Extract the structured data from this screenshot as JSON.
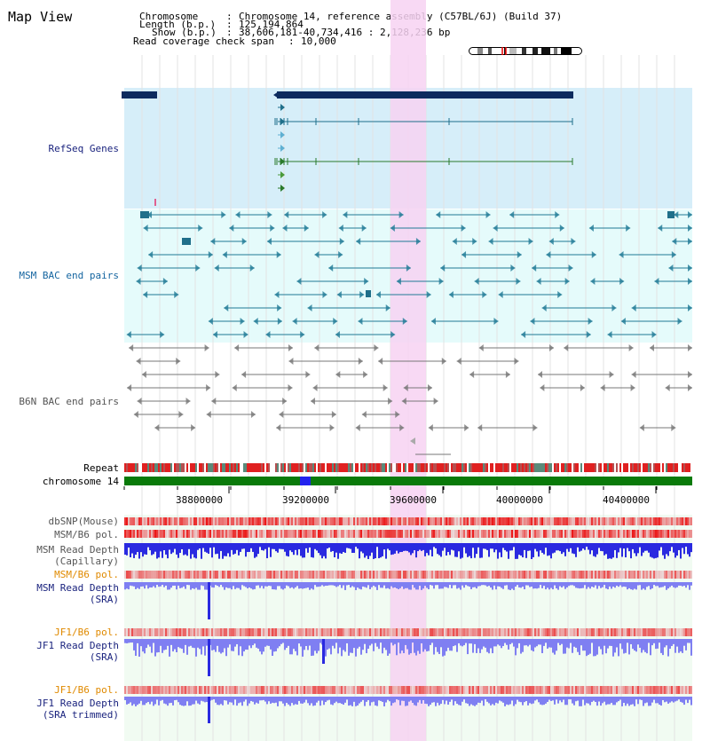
{
  "page": {
    "title": "Map View"
  },
  "info": {
    "chromosome_label": "Chromosome",
    "chromosome_value": "Chromosome 14, reference assembly (C57BL/6J) (Build 37)",
    "length_label": "Length (b.p.)",
    "length_value": "125,194,864",
    "show_label": "Show (b.p.)",
    "show_value": "38,606,181-40,734,416 : 2,128,236 bp",
    "span_label": "Read coverage check span",
    "span_value": "10,000",
    "sep": ":"
  },
  "tracks": {
    "refseq": "RefSeq Genes",
    "msm_bac": "MSM BAC end pairs",
    "b6n_bac": "B6N BAC end pairs",
    "repeat": "Repeat",
    "chromosome": "chromosome 14",
    "dbsnp": "dbSNP(Mouse)",
    "msm_b6_pol": "MSM/B6 pol.",
    "msm_depth_cap_1": "MSM Read Depth",
    "msm_depth_cap_2": "(Capillary)",
    "msm_b6_pol_2": "MSM/B6 pol.",
    "msm_depth_sra_1": "MSM Read Depth",
    "msm_depth_sra_2": "(SRA)",
    "jf1_b6_pol": "JF1/B6 pol.",
    "jf1_depth_sra_1": "JF1 Read Depth",
    "jf1_depth_sra_2": "(SRA)",
    "jf1_b6_pol_2": "JF1/B6 pol.",
    "jf1_depth_trim_1": "JF1 Read Depth",
    "jf1_depth_trim_2": "(SRA trimmed)"
  },
  "axis": {
    "ticks": [
      "38800000",
      "39200000",
      "39600000",
      "40000000",
      "40400000"
    ]
  },
  "colors": {
    "refseq_bg": "#d6eef9",
    "bac_bg": "#e5fbfb",
    "highlight": "#f7d2f2",
    "gene_navy": "#0d2b5e",
    "bac_teal": "#1f7a96",
    "b6n_gray": "#777777",
    "chrom_green": "#0a7a0a",
    "chrom_blue": "#2222ee",
    "pol_red": "#ee3333",
    "depth_blue": "#2a2ae0",
    "depth_light": "#7f7ff2",
    "orange": "#e08a00"
  }
}
